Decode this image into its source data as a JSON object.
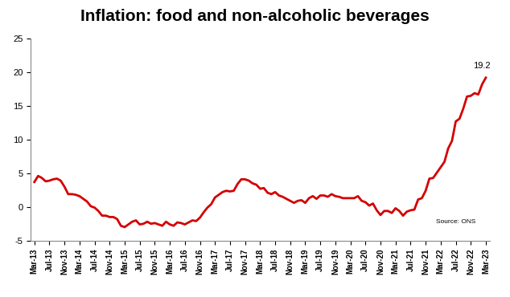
{
  "chart_data": {
    "type": "line",
    "title": "Inflation: food and non-alcoholic beverages",
    "source": "Source: ONS",
    "annotations": [
      {
        "text": "19.2"
      }
    ],
    "color": "#d40000",
    "categories": [
      "Mar-13",
      null,
      null,
      null,
      "Jul-13",
      null,
      null,
      null,
      "Nov-13",
      null,
      null,
      null,
      "Mar-14",
      null,
      null,
      null,
      "Jul-14",
      null,
      null,
      null,
      "Nov-14",
      null,
      null,
      null,
      "Mar-15",
      null,
      null,
      null,
      "Jul-15",
      null,
      null,
      null,
      "Nov-15",
      null,
      null,
      null,
      "Mar-16",
      null,
      null,
      null,
      "Jul-16",
      null,
      null,
      null,
      "Nov-16",
      null,
      null,
      null,
      "Mar-17",
      null,
      null,
      null,
      "Jul-17",
      null,
      null,
      null,
      "Nov-17",
      null,
      null,
      null,
      "Mar-18",
      null,
      null,
      null,
      "Jul-18",
      null,
      null,
      null,
      "Nov-18",
      null,
      null,
      null,
      "Mar-19",
      null,
      null,
      null,
      "Jul-19",
      null,
      null,
      null,
      "Nov-19",
      null,
      null,
      null,
      "Mar-20",
      null,
      null,
      null,
      "Jul-20",
      null,
      null,
      null,
      "Nov-20",
      null,
      null,
      null,
      "Mar-21",
      null,
      null,
      null,
      "Jul-21",
      null,
      null,
      null,
      "Nov-21",
      null,
      null,
      null,
      "Mar-22",
      null,
      null,
      null,
      "Jul-22",
      null,
      null,
      null,
      "Nov-22",
      null,
      null,
      null,
      "Mar-23"
    ],
    "values": [
      3.7,
      4.6,
      4.3,
      3.8,
      3.9,
      4.1,
      4.2,
      3.9,
      3.0,
      1.9,
      1.9,
      1.8,
      1.6,
      1.2,
      0.8,
      0.1,
      -0.1,
      -0.6,
      -1.3,
      -1.3,
      -1.5,
      -1.5,
      -1.8,
      -2.8,
      -3.0,
      -2.6,
      -2.2,
      -2.0,
      -2.6,
      -2.5,
      -2.2,
      -2.5,
      -2.4,
      -2.6,
      -2.8,
      -2.2,
      -2.6,
      -2.8,
      -2.3,
      -2.4,
      -2.6,
      -2.3,
      -2.0,
      -2.1,
      -1.6,
      -0.8,
      -0.1,
      0.4,
      1.4,
      1.8,
      2.2,
      2.4,
      2.3,
      2.4,
      3.4,
      4.1,
      4.1,
      3.9,
      3.5,
      3.3,
      2.7,
      2.8,
      2.1,
      1.9,
      2.2,
      1.7,
      1.5,
      1.2,
      0.9,
      0.6,
      0.9,
      1.0,
      0.6,
      1.3,
      1.6,
      1.2,
      1.7,
      1.7,
      1.5,
      1.9,
      1.6,
      1.5,
      1.3,
      1.3,
      1.3,
      1.3,
      1.6,
      0.9,
      0.7,
      0.2,
      0.5,
      -0.5,
      -1.2,
      -0.6,
      -0.6,
      -0.9,
      -0.2,
      -0.6,
      -1.3,
      -0.7,
      -0.5,
      -0.4,
      1.1,
      1.3,
      2.4,
      4.2,
      4.3,
      5.1,
      5.9,
      6.7,
      8.7,
      9.8,
      12.7,
      13.1,
      14.6,
      16.4,
      16.5,
      16.9,
      16.7,
      18.2,
      19.2
    ],
    "ylim": [
      -5,
      25
    ],
    "yticks": [
      -5,
      0,
      5,
      10,
      15,
      20,
      25
    ],
    "grid": false
  }
}
